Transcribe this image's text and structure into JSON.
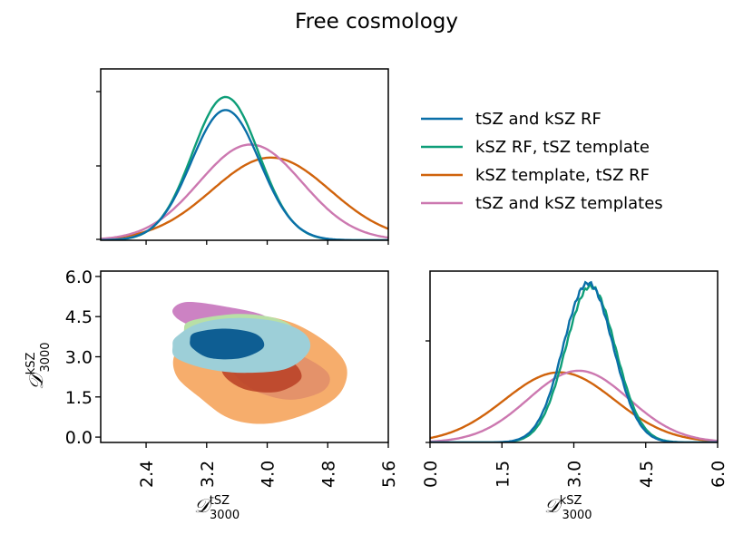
{
  "title": "Free cosmology",
  "legend": [
    {
      "label": "tSZ and kSZ RF",
      "color": "#0a6fa8"
    },
    {
      "label": "kSZ RF,  tSZ template",
      "color": "#0e9e78"
    },
    {
      "label": "kSZ template,  tSZ RF",
      "color": "#d0630c"
    },
    {
      "label": "tSZ and kSZ templates",
      "color": "#cc78b0"
    }
  ],
  "chart_data": [
    {
      "type": "line",
      "panel": "tSZ 1D marginal (top-left)",
      "x_range": [
        1.8,
        5.6
      ],
      "series": [
        {
          "name": "tSZ and kSZ RF",
          "color": "#0a6fa8",
          "mean": 3.45,
          "sigma": 0.45,
          "peak": 1.0
        },
        {
          "name": "kSZ RF,  tSZ template",
          "color": "#0e9e78",
          "mean": 3.45,
          "sigma": 0.44,
          "peak": 1.1
        },
        {
          "name": "kSZ template,  tSZ RF",
          "color": "#d0630c",
          "mean": 4.05,
          "sigma": 0.78,
          "peak": 0.635
        },
        {
          "name": "tSZ and kSZ templates",
          "color": "#cc78b0",
          "mean": 3.78,
          "sigma": 0.68,
          "peak": 0.735
        }
      ]
    },
    {
      "type": "contour",
      "panel": "2D posterior (bottom-left)",
      "xlabel": "D_3000^tSZ",
      "ylabel": "D_3000^kSZ",
      "xlim": [
        1.8,
        5.6
      ],
      "ylim": [
        -0.2,
        6.2
      ],
      "xticks": [
        "2.4",
        "3.2",
        "4.0",
        "4.8",
        "5.6"
      ],
      "yticks": [
        "0.0",
        "1.5",
        "3.0",
        "4.5",
        "6.0"
      ],
      "series": [
        {
          "name": "kSZ template,  tSZ RF",
          "color": "#f5a864",
          "center": [
            4.1,
            2.7
          ],
          "levels": 2
        },
        {
          "name": "tSZ and kSZ templates",
          "color": "#c36cb8",
          "center": [
            3.75,
            3.3
          ],
          "levels": 2
        },
        {
          "name": "kSZ RF,  tSZ template",
          "color": "#a8dc9a",
          "center": [
            3.55,
            3.5
          ],
          "levels": 2
        },
        {
          "name": "tSZ and kSZ RF",
          "color": "#0a6fa8",
          "center": [
            3.45,
            3.3
          ],
          "levels": 2
        }
      ]
    },
    {
      "type": "line",
      "panel": "kSZ 1D marginal (bottom-right)",
      "xlabel": "D_3000^kSZ",
      "x_range": [
        0.0,
        6.0
      ],
      "xticks": [
        "0.0",
        "1.5",
        "3.0",
        "4.5",
        "6.0"
      ],
      "series": [
        {
          "name": "tSZ and kSZ RF",
          "color": "#0a6fa8",
          "mean": 3.3,
          "sigma": 0.52,
          "peak": 1.0
        },
        {
          "name": "kSZ RF,  tSZ template",
          "color": "#0e9e78",
          "mean": 3.35,
          "sigma": 0.52,
          "peak": 0.98
        },
        {
          "name": "kSZ template,  tSZ RF",
          "color": "#d0630c",
          "mean": 2.7,
          "sigma": 1.15,
          "peak": 0.44
        },
        {
          "name": "tSZ and kSZ templates",
          "color": "#cc78b0",
          "mean": 3.1,
          "sigma": 1.05,
          "peak": 0.45
        }
      ]
    }
  ]
}
